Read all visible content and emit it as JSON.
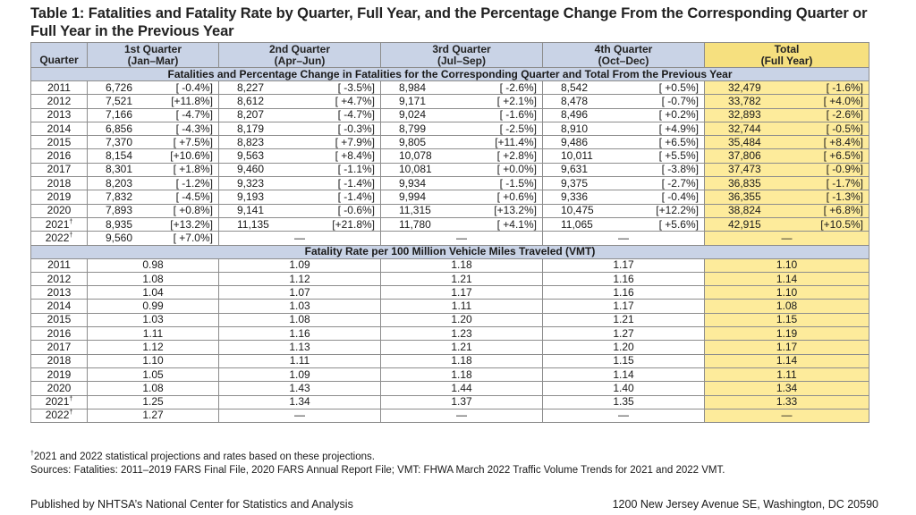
{
  "title": "Table 1: Fatalities and Fatality Rate by Quarter, Full Year, and the Percentage Change From the Corresponding Quarter or Full Year in the Previous Year",
  "headers": {
    "quarter": "Quarter",
    "q1_line1": "1st Quarter",
    "q1_line2": "(Jan–Mar)",
    "q2_line1": "2nd Quarter",
    "q2_line2": "(Apr–Jun)",
    "q3_line1": "3rd Quarter",
    "q3_line2": "(Jul–Sep)",
    "q4_line1": "4th Quarter",
    "q4_line2": "(Oct–Dec)",
    "total_line1": "Total",
    "total_line2": "(Full Year)"
  },
  "section1_title": "Fatalities and Percentage Change in Fatalities for the Corresponding Quarter and Total From the Previous Year",
  "fatalities": [
    {
      "year": "2011",
      "q1": [
        "6,726",
        "[ -0.4%]"
      ],
      "q2": [
        "8,227",
        "[ -3.5%]"
      ],
      "q3": [
        "8,984",
        "[ -2.6%]"
      ],
      "q4": [
        "8,542",
        "[ +0.5%]"
      ],
      "total": [
        "32,479",
        "[ -1.6%]"
      ]
    },
    {
      "year": "2012",
      "q1": [
        "7,521",
        "[+11.8%]"
      ],
      "q2": [
        "8,612",
        "[ +4.7%]"
      ],
      "q3": [
        "9,171",
        "[ +2.1%]"
      ],
      "q4": [
        "8,478",
        "[ -0.7%]"
      ],
      "total": [
        "33,782",
        "[ +4.0%]"
      ]
    },
    {
      "year": "2013",
      "q1": [
        "7,166",
        "[ -4.7%]"
      ],
      "q2": [
        "8,207",
        "[ -4.7%]"
      ],
      "q3": [
        "9,024",
        "[ -1.6%]"
      ],
      "q4": [
        "8,496",
        "[ +0.2%]"
      ],
      "total": [
        "32,893",
        "[ -2.6%]"
      ]
    },
    {
      "year": "2014",
      "q1": [
        "6,856",
        "[ -4.3%]"
      ],
      "q2": [
        "8,179",
        "[ -0.3%]"
      ],
      "q3": [
        "8,799",
        "[ -2.5%]"
      ],
      "q4": [
        "8,910",
        "[ +4.9%]"
      ],
      "total": [
        "32,744",
        "[ -0.5%]"
      ]
    },
    {
      "year": "2015",
      "q1": [
        "7,370",
        "[ +7.5%]"
      ],
      "q2": [
        "8,823",
        "[ +7.9%]"
      ],
      "q3": [
        "9,805",
        "[+11.4%]"
      ],
      "q4": [
        "9,486",
        "[ +6.5%]"
      ],
      "total": [
        "35,484",
        "[ +8.4%]"
      ]
    },
    {
      "year": "2016",
      "q1": [
        "8,154",
        "[+10.6%]"
      ],
      "q2": [
        "9,563",
        "[ +8.4%]"
      ],
      "q3": [
        "10,078",
        "[ +2.8%]"
      ],
      "q4": [
        "10,011",
        "[ +5.5%]"
      ],
      "total": [
        "37,806",
        "[ +6.5%]"
      ]
    },
    {
      "year": "2017",
      "q1": [
        "8,301",
        "[ +1.8%]"
      ],
      "q2": [
        "9,460",
        "[ -1.1%]"
      ],
      "q3": [
        "10,081",
        "[ +0.0%]"
      ],
      "q4": [
        "9,631",
        "[ -3.8%]"
      ],
      "total": [
        "37,473",
        "[ -0.9%]"
      ]
    },
    {
      "year": "2018",
      "q1": [
        "8,203",
        "[ -1.2%]"
      ],
      "q2": [
        "9,323",
        "[ -1.4%]"
      ],
      "q3": [
        "9,934",
        "[ -1.5%]"
      ],
      "q4": [
        "9,375",
        "[ -2.7%]"
      ],
      "total": [
        "36,835",
        "[ -1.7%]"
      ]
    },
    {
      "year": "2019",
      "q1": [
        "7,832",
        "[ -4.5%]"
      ],
      "q2": [
        "9,193",
        "[ -1.4%]"
      ],
      "q3": [
        "9,994",
        "[ +0.6%]"
      ],
      "q4": [
        "9,336",
        "[ -0.4%]"
      ],
      "total": [
        "36,355",
        "[ -1.3%]"
      ]
    },
    {
      "year": "2020",
      "q1": [
        "7,893",
        "[ +0.8%]"
      ],
      "q2": [
        "9,141",
        "[ -0.6%]"
      ],
      "q3": [
        "11,315",
        "[+13.2%]"
      ],
      "q4": [
        "10,475",
        "[+12.2%]"
      ],
      "total": [
        "38,824",
        "[ +6.8%]"
      ]
    },
    {
      "year": "2021",
      "mark": "†",
      "q1": [
        "8,935",
        "[+13.2%]"
      ],
      "q2": [
        "11,135",
        "[+21.8%]"
      ],
      "q3": [
        "11,780",
        "[ +4.1%]"
      ],
      "q4": [
        "11,065",
        "[ +5.6%]"
      ],
      "total": [
        "42,915",
        "[+10.5%]"
      ]
    },
    {
      "year": "2022",
      "mark": "†",
      "q1": [
        "9,560",
        "[ +7.0%]"
      ],
      "q2": [
        "—",
        ""
      ],
      "q3": [
        "—",
        ""
      ],
      "q4": [
        "—",
        ""
      ],
      "total": [
        "—",
        ""
      ]
    }
  ],
  "section2_title": "Fatality Rate per 100 Million Vehicle Miles Traveled (VMT)",
  "rates": [
    {
      "year": "2011",
      "q1": "0.98",
      "q2": "1.09",
      "q3": "1.18",
      "q4": "1.17",
      "total": "1.10"
    },
    {
      "year": "2012",
      "q1": "1.08",
      "q2": "1.12",
      "q3": "1.21",
      "q4": "1.16",
      "total": "1.14"
    },
    {
      "year": "2013",
      "q1": "1.04",
      "q2": "1.07",
      "q3": "1.17",
      "q4": "1.16",
      "total": "1.10"
    },
    {
      "year": "2014",
      "q1": "0.99",
      "q2": "1.03",
      "q3": "1.11",
      "q4": "1.17",
      "total": "1.08"
    },
    {
      "year": "2015",
      "q1": "1.03",
      "q2": "1.08",
      "q3": "1.20",
      "q4": "1.21",
      "total": "1.15"
    },
    {
      "year": "2016",
      "q1": "1.11",
      "q2": "1.16",
      "q3": "1.23",
      "q4": "1.27",
      "total": "1.19"
    },
    {
      "year": "2017",
      "q1": "1.12",
      "q2": "1.13",
      "q3": "1.21",
      "q4": "1.20",
      "total": "1.17"
    },
    {
      "year": "2018",
      "q1": "1.10",
      "q2": "1.11",
      "q3": "1.18",
      "q4": "1.15",
      "total": "1.14"
    },
    {
      "year": "2019",
      "q1": "1.05",
      "q2": "1.09",
      "q3": "1.18",
      "q4": "1.14",
      "total": "1.11"
    },
    {
      "year": "2020",
      "q1": "1.08",
      "q2": "1.43",
      "q3": "1.44",
      "q4": "1.40",
      "total": "1.34"
    },
    {
      "year": "2021",
      "mark": "†",
      "q1": "1.25",
      "q2": "1.34",
      "q3": "1.37",
      "q4": "1.35",
      "total": "1.33"
    },
    {
      "year": "2022",
      "mark": "†",
      "q1": "1.27",
      "q2": "—",
      "q3": "—",
      "q4": "—",
      "total": "—"
    }
  ],
  "footnote_mark": "†",
  "footnote": "2021 and 2022 statistical projections and rates based on these projections.",
  "sources": "Sources: Fatalities: 2011–2019 FARS Final File, 2020 FARS Annual Report File; VMT: FHWA March 2022 Traffic Volume Trends for 2021 and 2022 VMT.",
  "publisher": "Published by NHTSA’s National Center for Statistics and Analysis",
  "address": "1200 New Jersey Avenue SE, Washington, DC 20590",
  "colors": {
    "header_blue": "#c9d3e6",
    "total_yellow": "#fdeb9b"
  }
}
